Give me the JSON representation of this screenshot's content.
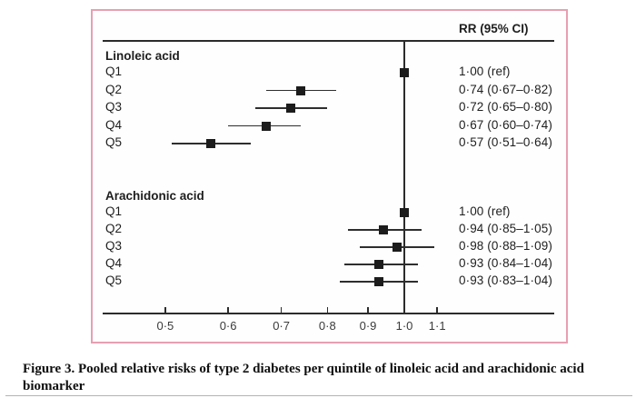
{
  "figure": {
    "caption": "Figure 3. Pooled relative risks of type 2 diabetes per quintile of linoleic acid and arachidonic acid biomarker"
  },
  "chart_data": {
    "type": "forest",
    "column_header": "RR (95% CI)",
    "x_axis": {
      "scale": "log",
      "ticks": [
        0.5,
        0.6,
        0.7,
        0.8,
        0.9,
        1.0,
        1.1
      ],
      "tick_labels": [
        "0·5",
        "0·6",
        "0·7",
        "0·8",
        "0·9",
        "1·0",
        "1·1"
      ],
      "range": [
        0.46,
        1.18
      ],
      "reference_value": 1.0
    },
    "groups": [
      {
        "label": "Linoleic acid",
        "rows": [
          {
            "quintile": "Q1",
            "rr": 1.0,
            "ci_low": null,
            "ci_high": null,
            "rr_text": "1·00 (ref)"
          },
          {
            "quintile": "Q2",
            "rr": 0.74,
            "ci_low": 0.67,
            "ci_high": 0.82,
            "rr_text": "0·74 (0·67–0·82)"
          },
          {
            "quintile": "Q3",
            "rr": 0.72,
            "ci_low": 0.65,
            "ci_high": 0.8,
            "rr_text": "0·72 (0·65–0·80)"
          },
          {
            "quintile": "Q4",
            "rr": 0.67,
            "ci_low": 0.6,
            "ci_high": 0.74,
            "rr_text": "0·67 (0·60–0·74)"
          },
          {
            "quintile": "Q5",
            "rr": 0.57,
            "ci_low": 0.51,
            "ci_high": 0.64,
            "rr_text": "0·57 (0·51–0·64)"
          }
        ]
      },
      {
        "label": "Arachidonic acid",
        "rows": [
          {
            "quintile": "Q1",
            "rr": 1.0,
            "ci_low": null,
            "ci_high": null,
            "rr_text": "1·00 (ref)"
          },
          {
            "quintile": "Q2",
            "rr": 0.94,
            "ci_low": 0.85,
            "ci_high": 1.05,
            "rr_text": "0·94 (0·85–1·05)"
          },
          {
            "quintile": "Q3",
            "rr": 0.98,
            "ci_low": 0.88,
            "ci_high": 1.09,
            "rr_text": "0·98 (0·88–1·09)"
          },
          {
            "quintile": "Q4",
            "rr": 0.93,
            "ci_low": 0.84,
            "ci_high": 1.04,
            "rr_text": "0·93 (0·84–1·04)"
          },
          {
            "quintile": "Q5",
            "rr": 0.93,
            "ci_low": 0.83,
            "ci_high": 1.04,
            "rr_text": "0·93 (0·83–1·04)"
          }
        ]
      }
    ]
  },
  "colors": {
    "panel_border": "#e79fb2",
    "ink": "#1e1e1e",
    "marker": "#1c1c1c",
    "line": "#2b2b2b",
    "bottom_rule": "#b3b3b3"
  }
}
